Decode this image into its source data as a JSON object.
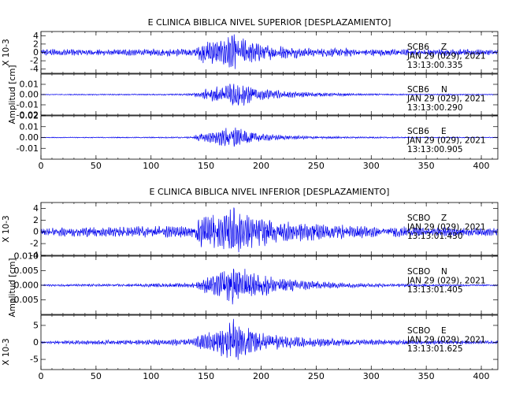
{
  "chart_data": [
    {
      "type": "line",
      "title": "E CLINICA BIBLICA NIVEL SUPERIOR [DESPLAZAMIENTO]",
      "ylabel": "Amplitud [cm]",
      "xlim": [
        0,
        415
      ],
      "xticks": [
        0,
        50,
        100,
        150,
        200,
        250,
        300,
        350,
        400
      ],
      "line_color": "#0000ee",
      "panels": [
        {
          "station": "SCB6",
          "component": "Z",
          "date": "JAN 29 (029), 2021",
          "time": "13:13:00.335",
          "scale_label": "X 10-3",
          "ylim": [
            -5,
            5
          ],
          "yticks": [
            -4,
            -2,
            0,
            2,
            4
          ],
          "ytick_labels": [
            "-4",
            "-2",
            "0",
            "2",
            "4"
          ],
          "series": [
            {
              "x": [
                0,
                20,
                40,
                60,
                80,
                100,
                120,
                138,
                145,
                150,
                160,
                170,
                175,
                180,
                190,
                200,
                220,
                240,
                260,
                280,
                300,
                320,
                340,
                360,
                380,
                400,
                415
              ],
              "amplitude": [
                0.8,
                0.9,
                0.8,
                0.7,
                0.8,
                0.9,
                1.0,
                0.9,
                2.2,
                3.0,
                3.2,
                4.0,
                4.8,
                3.8,
                2.8,
                2.2,
                1.6,
                1.3,
                1.1,
                1.0,
                0.9,
                0.9,
                0.8,
                0.8,
                0.8,
                0.7,
                0.7
              ]
            }
          ]
        },
        {
          "station": "SCB6",
          "component": "N",
          "date": "JAN 29 (029), 2021",
          "time": "13:13:00.290",
          "ylim": [
            -0.02,
            0.02
          ],
          "yticks": [
            -0.02,
            -0.01,
            0.0,
            0.01
          ],
          "ytick_labels": [
            "-0.02",
            "-0.01",
            "0.00",
            "0.01"
          ],
          "series": [
            {
              "x": [
                0,
                20,
                40,
                60,
                80,
                100,
                120,
                138,
                145,
                150,
                160,
                170,
                175,
                180,
                190,
                200,
                220,
                240,
                260,
                280,
                300,
                320,
                340,
                360,
                380,
                400,
                415
              ],
              "amplitude": [
                0.0005,
                0.0005,
                0.0006,
                0.0006,
                0.0006,
                0.0007,
                0.0008,
                0.0012,
                0.004,
                0.006,
                0.008,
                0.012,
                0.015,
                0.013,
                0.009,
                0.006,
                0.004,
                0.0025,
                0.0018,
                0.0012,
                0.0009,
                0.0008,
                0.0007,
                0.0006,
                0.0006,
                0.0005,
                0.0005
              ]
            }
          ]
        },
        {
          "station": "SCB6",
          "component": "E",
          "date": "JAN 29 (029), 2021",
          "time": "13:13:00.905",
          "ylim": [
            -0.02,
            0.02
          ],
          "yticks": [
            -0.01,
            0.0,
            0.01,
            0.02
          ],
          "ytick_labels": [
            "-0.01",
            "0.00",
            "0.01",
            "0.02"
          ],
          "series": [
            {
              "x": [
                0,
                20,
                40,
                60,
                80,
                100,
                120,
                138,
                145,
                150,
                160,
                170,
                175,
                180,
                190,
                200,
                220,
                240,
                260,
                280,
                300,
                320,
                340,
                360,
                380,
                400,
                415
              ],
              "amplitude": [
                0.0004,
                0.0004,
                0.0005,
                0.0005,
                0.0005,
                0.0006,
                0.0007,
                0.001,
                0.005,
                0.006,
                0.007,
                0.01,
                0.012,
                0.009,
                0.006,
                0.004,
                0.002,
                0.0015,
                0.0012,
                0.0009,
                0.0008,
                0.0007,
                0.0006,
                0.0005,
                0.0005,
                0.0004,
                0.0004
              ]
            }
          ]
        }
      ]
    },
    {
      "type": "line",
      "title": "E CLINICA BIBLICA NIVEL INFERIOR [DESPLAZAMIENTO]",
      "ylabel": "Amplitud [cm]",
      "xlim": [
        0,
        415
      ],
      "xticks": [
        0,
        50,
        100,
        150,
        200,
        250,
        300,
        350,
        400
      ],
      "line_color": "#0000ee",
      "panels": [
        {
          "station": "SCBO",
          "component": "Z",
          "date": "JAN 29 (029), 2021",
          "time": "13:13:01.430",
          "scale_label": "X 10-3",
          "ylim": [
            -4,
            5
          ],
          "yticks": [
            -4,
            -2,
            0,
            2,
            4
          ],
          "ytick_labels": [
            "-4",
            "-2",
            "0",
            "2",
            "4"
          ],
          "series": [
            {
              "x": [
                0,
                20,
                40,
                60,
                80,
                100,
                120,
                138,
                145,
                150,
                160,
                170,
                175,
                180,
                190,
                200,
                220,
                240,
                260,
                280,
                300,
                320,
                340,
                360,
                380,
                400,
                415
              ],
              "amplitude": [
                0.6,
                0.8,
                0.9,
                0.9,
                1.0,
                1.0,
                1.1,
                1.0,
                2.8,
                3.2,
                3.0,
                3.5,
                4.6,
                3.6,
                3.0,
                2.6,
                2.0,
                1.6,
                1.4,
                1.2,
                1.1,
                1.0,
                0.9,
                0.8,
                0.8,
                0.7,
                0.7
              ]
            }
          ]
        },
        {
          "station": "SCBO",
          "component": "N",
          "date": "JAN 29 (029), 2021",
          "time": "13:13:01.405",
          "ylim": [
            -0.01,
            0.01
          ],
          "yticks": [
            -0.005,
            0.0,
            0.005,
            0.01
          ],
          "ytick_labels": [
            "-0.005",
            "0.000",
            "0.005",
            "0.010"
          ],
          "series": [
            {
              "x": [
                0,
                20,
                40,
                60,
                80,
                100,
                120,
                138,
                145,
                150,
                160,
                170,
                175,
                180,
                190,
                200,
                220,
                240,
                260,
                280,
                300,
                320,
                340,
                360,
                380,
                400,
                415
              ],
              "amplitude": [
                0.0003,
                0.0004,
                0.0004,
                0.0005,
                0.0005,
                0.0006,
                0.0007,
                0.0008,
                0.002,
                0.003,
                0.004,
                0.006,
                0.0085,
                0.007,
                0.005,
                0.004,
                0.0025,
                0.0018,
                0.0012,
                0.0009,
                0.0007,
                0.0006,
                0.0005,
                0.0004,
                0.0004,
                0.0003,
                0.0003
              ]
            }
          ]
        },
        {
          "station": "SCBO",
          "component": "E",
          "date": "JAN 29 (029), 2021",
          "time": "13:13:01.625",
          "scale_label": "X 10-3",
          "ylim": [
            -8,
            8
          ],
          "yticks": [
            -5,
            0,
            5
          ],
          "ytick_labels": [
            "-5",
            "0",
            "5"
          ],
          "series": [
            {
              "x": [
                0,
                20,
                40,
                60,
                80,
                100,
                120,
                138,
                145,
                150,
                160,
                170,
                175,
                180,
                190,
                200,
                220,
                240,
                260,
                280,
                300,
                320,
                340,
                360,
                380,
                400,
                415
              ],
              "amplitude": [
                0.4,
                0.5,
                0.6,
                0.7,
                0.8,
                0.9,
                1.0,
                1.0,
                2.5,
                3.0,
                4.0,
                5.5,
                7.5,
                6.0,
                4.5,
                3.0,
                2.0,
                1.5,
                1.2,
                1.0,
                0.9,
                0.8,
                0.7,
                0.6,
                0.6,
                0.5,
                0.5
              ]
            }
          ]
        }
      ]
    }
  ]
}
